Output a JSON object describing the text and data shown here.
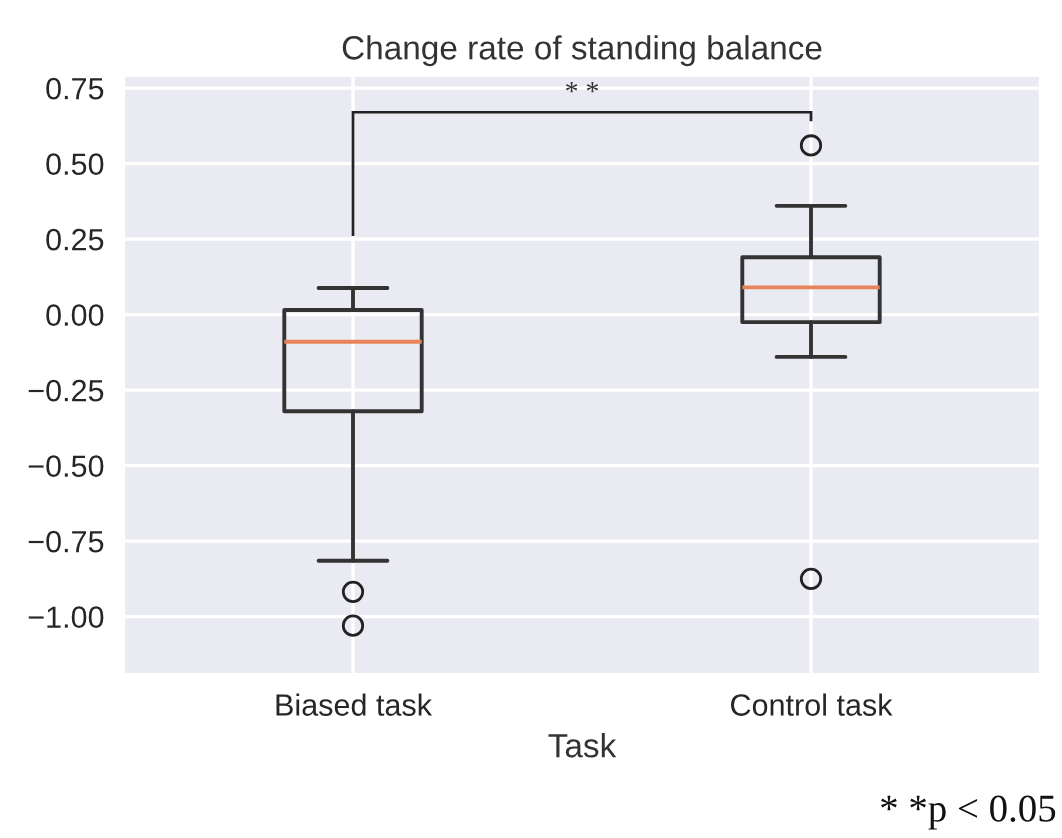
{
  "chart_data": {
    "type": "box",
    "title": "Change rate of standing balance",
    "xlabel": "Task",
    "categories": [
      "Biased task",
      "Control task"
    ],
    "boxes": [
      {
        "low": -0.815,
        "q1": -0.32,
        "median": -0.09,
        "q3": 0.015,
        "high": 0.088,
        "outliers": [
          -0.918,
          -1.03
        ]
      },
      {
        "low": -0.14,
        "q1": -0.025,
        "median": 0.09,
        "q3": 0.19,
        "high": 0.36,
        "outliers": [
          0.56,
          -0.875
        ]
      }
    ],
    "ylim": [
      -1.19,
      0.79
    ],
    "yticks": [
      {
        "value": -1.0,
        "label": "−1.00"
      },
      {
        "value": -0.75,
        "label": "−0.75"
      },
      {
        "value": -0.5,
        "label": "−0.50"
      },
      {
        "value": -0.25,
        "label": "−0.25"
      },
      {
        "value": 0.0,
        "label": "0.00"
      },
      {
        "value": 0.25,
        "label": "0.25"
      },
      {
        "value": 0.5,
        "label": "0.50"
      },
      {
        "value": 0.75,
        "label": "0.75"
      }
    ],
    "grid": true,
    "annotations": [
      "* *",
      "* *p < 0.05"
    ]
  }
}
